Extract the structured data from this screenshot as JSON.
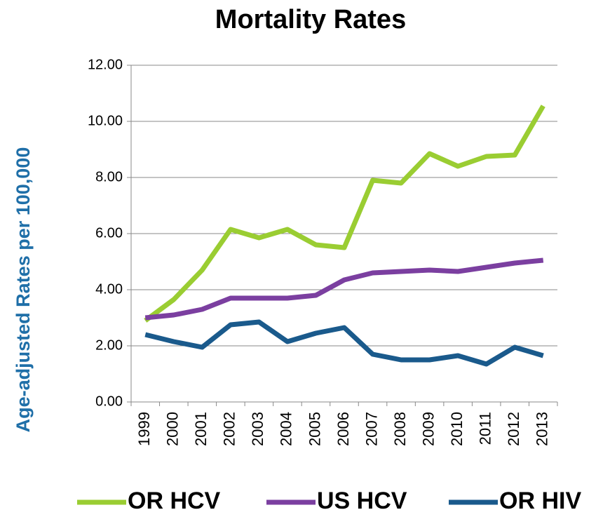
{
  "chart_data": {
    "type": "line",
    "title": "Mortality Rates",
    "y_label": "Age-adjusted Rates per 100,000",
    "categories": [
      "1999",
      "2000",
      "2001",
      "2002",
      "2003",
      "2004",
      "2005",
      "2006",
      "2007",
      "2008",
      "2009",
      "2010",
      "2011",
      "2012",
      "2013"
    ],
    "series": [
      {
        "name": "OR HCV",
        "color": "#9acd32",
        "values": [
          2.9,
          3.65,
          4.7,
          6.15,
          5.85,
          6.15,
          5.6,
          5.5,
          7.9,
          7.8,
          8.85,
          8.4,
          8.75,
          8.8,
          10.55
        ]
      },
      {
        "name": "US HCV",
        "color": "#7b3fa0",
        "values": [
          3.0,
          3.1,
          3.3,
          3.7,
          3.7,
          3.7,
          3.8,
          4.35,
          4.6,
          4.65,
          4.7,
          4.65,
          4.8,
          4.95,
          5.05
        ]
      },
      {
        "name": "OR HIV",
        "color": "#1a5a8c",
        "values": [
          2.4,
          2.15,
          1.95,
          2.75,
          2.85,
          2.15,
          2.45,
          2.65,
          1.7,
          1.5,
          1.5,
          1.65,
          1.35,
          1.95,
          1.65
        ]
      }
    ],
    "ylim": [
      0,
      12
    ],
    "yticks": [
      {
        "value": 0,
        "label": "0.00"
      },
      {
        "value": 2,
        "label": "2.00"
      },
      {
        "value": 4,
        "label": "4.00"
      },
      {
        "value": 6,
        "label": "6.00"
      },
      {
        "value": 8,
        "label": "8.00"
      },
      {
        "value": 10,
        "label": "10.00"
      },
      {
        "value": 12,
        "label": "12.00"
      }
    ],
    "grid": true,
    "legend": "bottom"
  }
}
